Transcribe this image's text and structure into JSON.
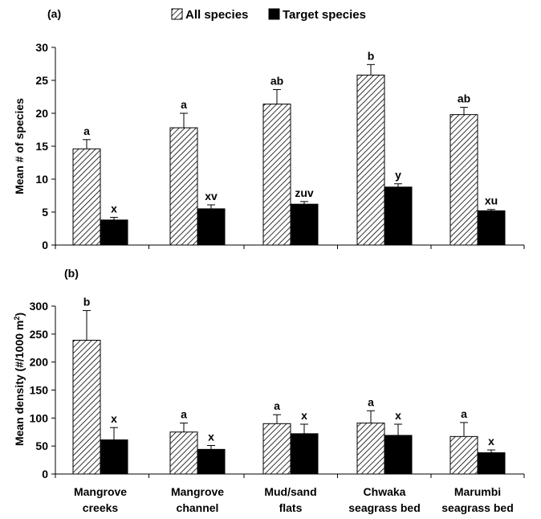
{
  "legend": {
    "all_label": "All species",
    "target_label": "Target species"
  },
  "colors": {
    "target": "#000000",
    "hatch": "#000000",
    "background": "#ffffff"
  },
  "categories": [
    [
      "Mangrove",
      "creeks"
    ],
    [
      "Mangrove",
      "channel"
    ],
    [
      "Mud/sand",
      "flats"
    ],
    [
      "Chwaka",
      "seagrass bed"
    ],
    [
      "Marumbi",
      "seagrass bed"
    ]
  ],
  "chart_data": [
    {
      "type": "bar",
      "panel_label": "(a)",
      "ylabel": "Mean # of species",
      "ylim": [
        0,
        30
      ],
      "yticks": [
        0,
        5,
        10,
        15,
        20,
        25,
        30
      ],
      "series": [
        {
          "name": "All species",
          "values": [
            14.6,
            17.8,
            21.4,
            25.8,
            19.8
          ],
          "errors": [
            1.4,
            2.2,
            2.2,
            1.6,
            1.1
          ],
          "labels": [
            "a",
            "a",
            "ab",
            "b",
            "ab"
          ]
        },
        {
          "name": "Target species",
          "values": [
            3.8,
            5.5,
            6.2,
            8.8,
            5.2
          ],
          "errors": [
            0.4,
            0.6,
            0.4,
            0.5,
            0.2
          ],
          "labels": [
            "x",
            "xv",
            "zuv",
            "y",
            "xu"
          ]
        }
      ]
    },
    {
      "type": "bar",
      "panel_label": "(b)",
      "ylabel": "Mean density (#/1000 m",
      "ylabel_sup": "2",
      "ylabel_tail": ")",
      "ylim": [
        0,
        300
      ],
      "yticks": [
        0,
        50,
        100,
        150,
        200,
        250,
        300
      ],
      "series": [
        {
          "name": "All species",
          "values": [
            239,
            75,
            90,
            91,
            67
          ],
          "errors": [
            53,
            16,
            16,
            22,
            25
          ],
          "labels": [
            "b",
            "a",
            "a",
            "a",
            "a"
          ]
        },
        {
          "name": "Target species",
          "values": [
            61,
            44,
            72,
            69,
            38
          ],
          "errors": [
            22,
            7,
            17,
            20,
            5
          ],
          "labels": [
            "x",
            "x",
            "x",
            "x",
            "x"
          ]
        }
      ]
    }
  ]
}
